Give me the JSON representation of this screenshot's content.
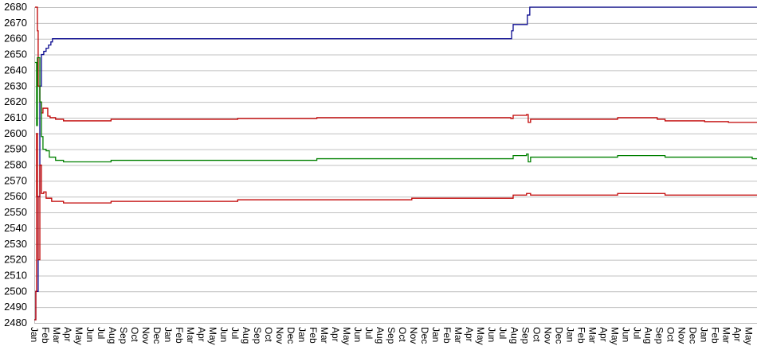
{
  "chart_data": {
    "type": "line",
    "title": "",
    "xlabel": "",
    "ylabel": "",
    "ylim": [
      2480,
      2680
    ],
    "yticks": [
      2480,
      2490,
      2500,
      2510,
      2520,
      2530,
      2540,
      2550,
      2560,
      2570,
      2580,
      2590,
      2600,
      2610,
      2620,
      2630,
      2640,
      2650,
      2660,
      2670,
      2680
    ],
    "xlim": [
      0,
      64.33
    ],
    "x_unit": "month",
    "grid": "horizontal",
    "legend": "none",
    "xtick_labels": [
      "Jan",
      "Feb",
      "Mar",
      "Apr",
      "May",
      "Jun",
      "Jul",
      "Aug",
      "Sep",
      "Oct",
      "Nov",
      "Dec"
    ],
    "line_style": "step",
    "series": [
      {
        "color": "#0a0a90",
        "x": [
          0,
          0.14,
          0.35,
          0.5,
          0.64,
          0.85,
          1.06,
          1.28,
          1.49,
          1.63,
          42.7,
          42.77,
          42.91,
          44.04,
          44.18,
          44.4,
          64.33
        ],
        "y": [
          2482,
          2500,
          2560,
          2630,
          2650,
          2652,
          2654,
          2656,
          2658,
          2660,
          2660,
          2665,
          2669,
          2669,
          2675,
          2680,
          2680
        ]
      },
      {
        "color": "#c00000",
        "x": [
          0.07,
          0.21,
          0.28,
          0.35,
          0.5,
          0.64,
          0.78,
          1.06,
          1.21,
          1.42,
          1.91,
          2.62,
          6.17,
          6.88,
          18.23,
          25.32,
          33.83,
          42.7,
          42.91,
          44.11,
          44.26,
          44.47,
          52.27,
          55.82,
          56.52,
          60.07,
          62.2,
          64.33
        ],
        "y": [
          2680,
          2680,
          2665,
          2630,
          2620,
          2613,
          2616,
          2616,
          2611,
          2610,
          2609,
          2608,
          2608,
          2609,
          2609.5,
          2610,
          2610,
          2609.5,
          2611.5,
          2612,
          2607,
          2609,
          2610,
          2609,
          2608,
          2607.5,
          2607,
          2607
        ]
      },
      {
        "color": "#008000",
        "x": [
          0.07,
          0.21,
          0.28,
          0.5,
          0.64,
          0.78,
          1.06,
          1.35,
          1.91,
          2.62,
          6.17,
          6.88,
          25.32,
          42.7,
          42.91,
          44.11,
          44.26,
          44.47,
          52.27,
          56.52,
          64.33
        ],
        "y": [
          2645,
          2605,
          2648,
          2620,
          2598,
          2590,
          2589,
          2585,
          2583,
          2582,
          2582,
          2583,
          2584,
          2584,
          2586,
          2587,
          2582,
          2585,
          2586,
          2585,
          2584
        ]
      },
      {
        "color": "#c00000",
        "x": [
          0,
          0.14,
          0.21,
          0.28,
          0.35,
          0.5,
          0.64,
          0.85,
          1.06,
          1.56,
          2.62,
          6.17,
          6.88,
          18.23,
          33.83,
          42.7,
          42.91,
          44.11,
          44.47,
          52.27,
          56.52,
          64.33
        ],
        "y": [
          2482,
          2500,
          2600,
          2560,
          2520,
          2580,
          2562,
          2563,
          2559,
          2557,
          2556,
          2556,
          2557,
          2558,
          2559,
          2559,
          2561,
          2562,
          2561,
          2562,
          2561,
          2561
        ]
      }
    ]
  }
}
